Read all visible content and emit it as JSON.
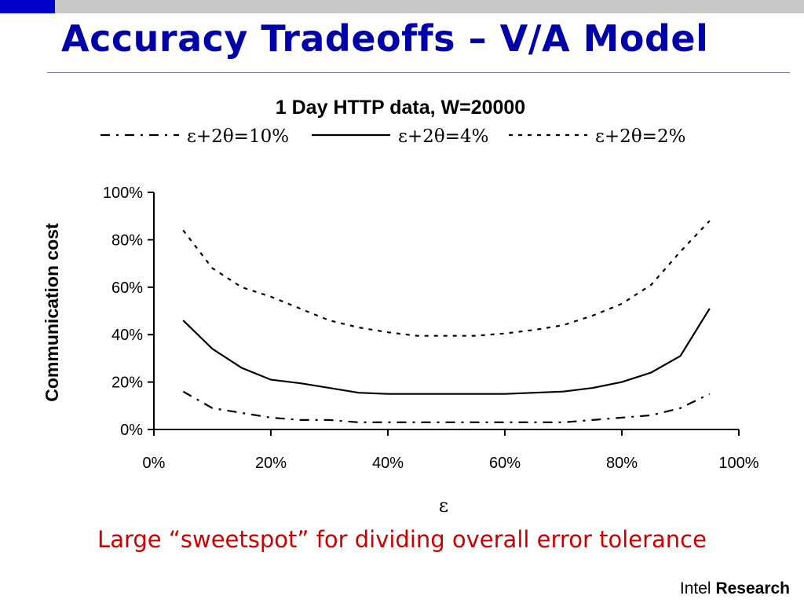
{
  "slide": {
    "title": "Accuracy Tradeoffs – V/A Model",
    "caption": "Large “sweetspot” for dividing overall error tolerance",
    "brand_light": "Intel",
    "brand_bold": "Research",
    "colors": {
      "title": "#0000a8",
      "caption": "#cc0000",
      "top_bar_accent": "#0000cc",
      "top_bar": "#c8c8c8"
    }
  },
  "chart_data": {
    "type": "line",
    "title": "1 Day HTTP data, W=20000",
    "xlabel": "ε",
    "ylabel": "Communication cost",
    "xlim": [
      0,
      100
    ],
    "ylim": [
      0,
      100
    ],
    "xticks": [
      "0%",
      "20%",
      "40%",
      "60%",
      "80%",
      "100%"
    ],
    "yticks": [
      "0%",
      "20%",
      "40%",
      "60%",
      "80%",
      "100%"
    ],
    "legend_position": "top",
    "grid": false,
    "series": [
      {
        "name": "ε+2θ=10%",
        "line_style": "dash-dot",
        "points": [
          [
            5,
            16
          ],
          [
            10,
            9
          ],
          [
            15,
            7
          ],
          [
            20,
            5
          ],
          [
            25,
            4
          ],
          [
            30,
            4
          ],
          [
            35,
            3
          ],
          [
            40,
            3
          ],
          [
            45,
            3
          ],
          [
            50,
            3
          ],
          [
            55,
            3
          ],
          [
            60,
            3
          ],
          [
            65,
            3
          ],
          [
            70,
            3
          ],
          [
            75,
            4
          ],
          [
            80,
            5
          ],
          [
            85,
            6
          ],
          [
            90,
            9
          ],
          [
            95,
            15
          ]
        ]
      },
      {
        "name": "ε+2θ=4%",
        "line_style": "solid",
        "points": [
          [
            5,
            46
          ],
          [
            10,
            34
          ],
          [
            15,
            26
          ],
          [
            20,
            21
          ],
          [
            25,
            19.5
          ],
          [
            30,
            17.5
          ],
          [
            35,
            15.5
          ],
          [
            40,
            15
          ],
          [
            45,
            15
          ],
          [
            50,
            15
          ],
          [
            55,
            15
          ],
          [
            60,
            15
          ],
          [
            65,
            15.5
          ],
          [
            70,
            16
          ],
          [
            75,
            17.5
          ],
          [
            80,
            20
          ],
          [
            85,
            24
          ],
          [
            90,
            31
          ],
          [
            95,
            51
          ]
        ]
      },
      {
        "name": "ε+2θ=2%",
        "line_style": "dotted",
        "points": [
          [
            5,
            84
          ],
          [
            10,
            68
          ],
          [
            15,
            60
          ],
          [
            20,
            56
          ],
          [
            25,
            51
          ],
          [
            30,
            46
          ],
          [
            35,
            43
          ],
          [
            40,
            41
          ],
          [
            45,
            39.5
          ],
          [
            50,
            39.5
          ],
          [
            55,
            39.5
          ],
          [
            60,
            40.5
          ],
          [
            65,
            42
          ],
          [
            70,
            44
          ],
          [
            75,
            48
          ],
          [
            80,
            53
          ],
          [
            85,
            61
          ],
          [
            90,
            75
          ],
          [
            95,
            88
          ]
        ]
      }
    ]
  }
}
